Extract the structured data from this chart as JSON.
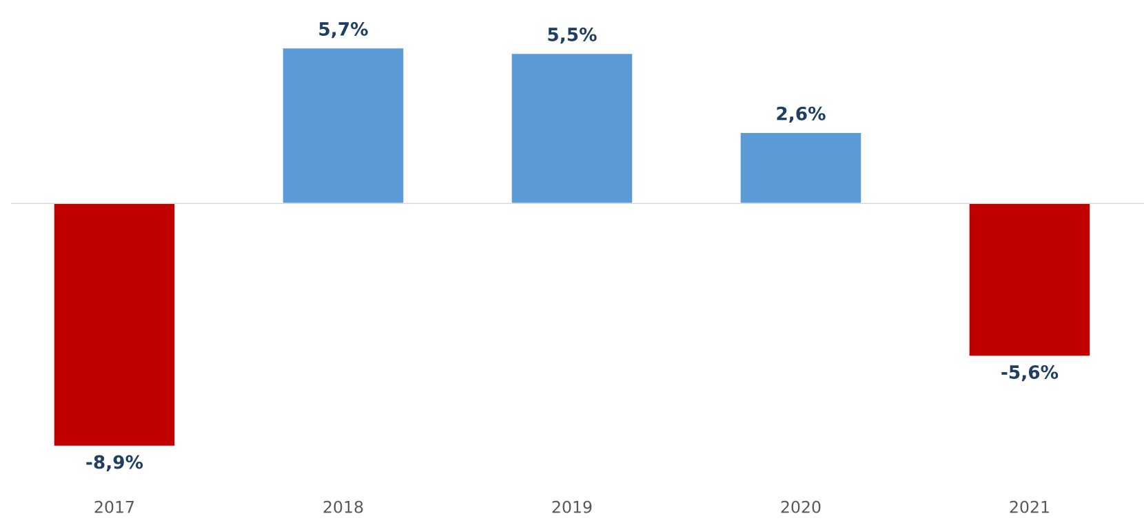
{
  "chart_data": {
    "type": "bar",
    "categories": [
      "2017",
      "2018",
      "2019",
      "2020",
      "2021"
    ],
    "values": [
      -8.9,
      5.7,
      5.5,
      2.6,
      -5.6
    ],
    "colors": [
      "#c00000",
      "#5b9bd5",
      "#5b9bd5",
      "#5b9bd5",
      "#c00000"
    ],
    "value_labels": [
      "-8,9%",
      "5,7%",
      "5,5%",
      "2,6%",
      "-5,6%"
    ],
    "tick_labels": "x",
    "grid": false
  }
}
